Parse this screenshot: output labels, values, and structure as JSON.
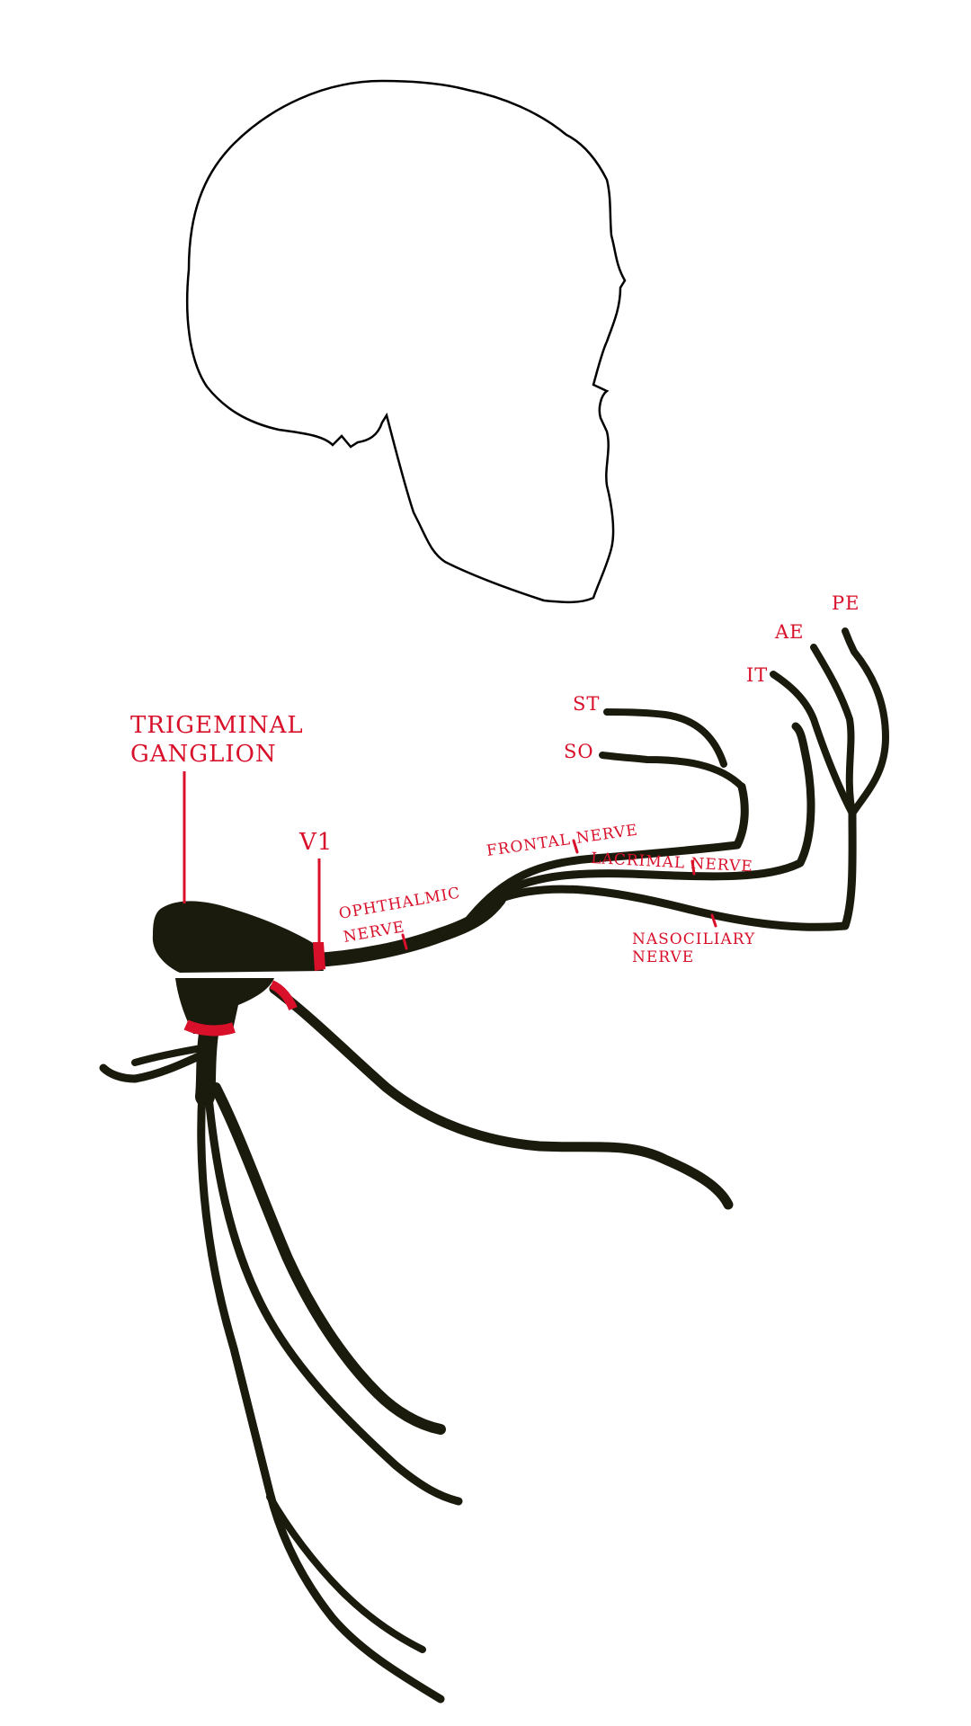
{
  "labels": {
    "trigeminal_line1": "TRIGEMINAL",
    "trigeminal_line2": "GANGLION",
    "v1": "V1",
    "ophthalmic_line1": "OPHTHALMIC",
    "ophthalmic_line2": "NERVE",
    "frontal": "FRONTAL NERVE",
    "lacrimal": "LACRIMAL NERVE",
    "nasociliary_line1": "NASOCILIARY",
    "nasociliary_line2": "NERVE",
    "st": "ST",
    "so": "SO",
    "it": "IT",
    "ae": "AE",
    "pe": "PE"
  },
  "colors": {
    "label": "#d8102a",
    "nerve": "#1a1a0d",
    "skull_outline": "#000000",
    "background": "#ffffff"
  }
}
